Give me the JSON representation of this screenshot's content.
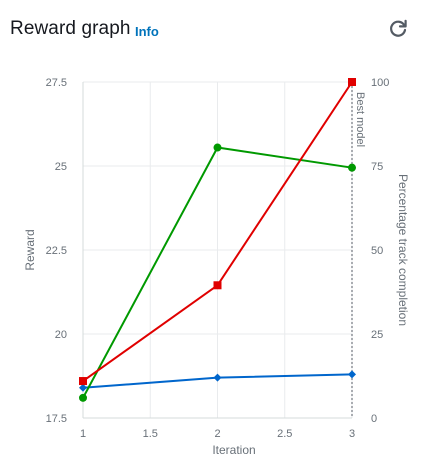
{
  "header": {
    "title": "Reward graph",
    "info_label": "Info",
    "refresh_icon": "refresh-icon"
  },
  "chart_data": {
    "type": "line",
    "xlabel": "Iteration",
    "ylabel": "Reward",
    "y2label": "Percentage track completion",
    "xlim": [
      1,
      3
    ],
    "ylim": [
      17.5,
      27.5
    ],
    "y2lim": [
      0,
      100
    ],
    "x_ticks": [
      "1",
      "1.5",
      "2",
      "2.5",
      "3"
    ],
    "y_ticks": [
      "17.5",
      "20",
      "22.5",
      "25",
      "27.5"
    ],
    "y2_ticks": [
      "0",
      "25",
      "50",
      "75",
      "100"
    ],
    "grid": true,
    "series": [
      {
        "axis": "left",
        "color": "#0066cc",
        "marker": "diamond",
        "x": [
          1,
          2,
          3
        ],
        "y": [
          18.4,
          18.7,
          18.8
        ]
      },
      {
        "axis": "left",
        "color": "#009900",
        "marker": "circle",
        "x": [
          1,
          2,
          3
        ],
        "y": [
          18.1,
          25.55,
          24.95
        ]
      },
      {
        "axis": "right",
        "color": "#e00000",
        "marker": "square",
        "x": [
          1,
          2,
          3
        ],
        "y": [
          11,
          39.5,
          100
        ]
      }
    ],
    "annotation": {
      "x": 3,
      "label": "Best model",
      "style": "dashed"
    }
  }
}
